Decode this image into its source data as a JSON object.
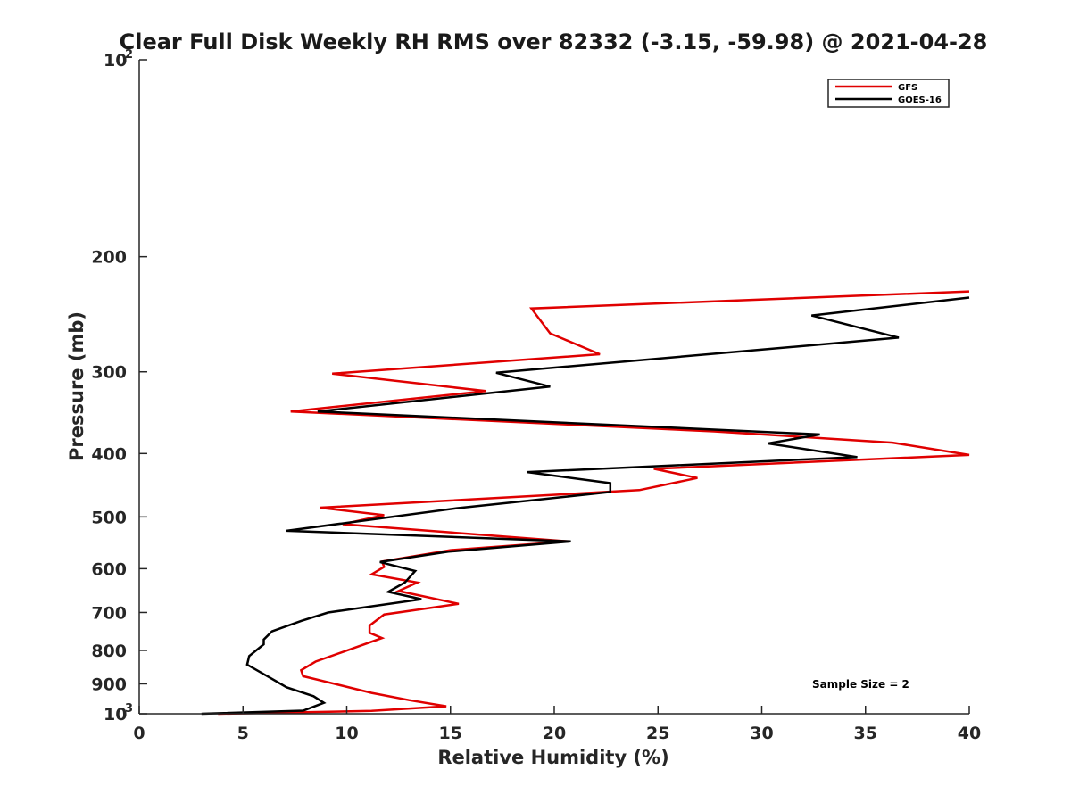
{
  "chart_data": {
    "type": "line",
    "title": "Clear Full Disk Weekly RH RMS over 82332 (-3.15, -59.98) @ 2021-04-28",
    "xlabel": "Relative Humidity (%)",
    "ylabel": "Pressure (mb)",
    "xlim": [
      0,
      40
    ],
    "ylim": [
      100,
      1000
    ],
    "y_scale": "log",
    "y_reversed": true,
    "grid": false,
    "legend_position": "top-right",
    "x_ticks": [
      "0",
      "5",
      "10",
      "15",
      "20",
      "25",
      "30",
      "35",
      "40"
    ],
    "y_ticks": [
      {
        "value": 100,
        "base": "10",
        "exp": "2"
      },
      {
        "value": 200,
        "label": "200"
      },
      {
        "value": 300,
        "label": "300"
      },
      {
        "value": 400,
        "label": "400"
      },
      {
        "value": 500,
        "label": "500"
      },
      {
        "value": 600,
        "label": "600"
      },
      {
        "value": 700,
        "label": "700"
      },
      {
        "value": 800,
        "label": "800"
      },
      {
        "value": 900,
        "label": "900"
      },
      {
        "value": 1000,
        "base": "10",
        "exp": "3"
      }
    ],
    "annotation": "Sample Size = 2",
    "series": [
      {
        "name": "GFS",
        "color": "#e00000",
        "points": [
          [
            40,
            226
          ],
          [
            18.9,
            240
          ],
          [
            19.8,
            262
          ],
          [
            22.2,
            282
          ],
          [
            9.3,
            302
          ],
          [
            16.7,
            321
          ],
          [
            7.3,
            345
          ],
          [
            27.7,
            370
          ],
          [
            36.3,
            385
          ],
          [
            40,
            402
          ],
          [
            24.8,
            422
          ],
          [
            26.9,
            436
          ],
          [
            24.1,
            455
          ],
          [
            8.7,
            484
          ],
          [
            11.8,
            497
          ],
          [
            9.8,
            513
          ],
          [
            20.7,
            545
          ],
          [
            15,
            562
          ],
          [
            11.7,
            585
          ],
          [
            11.8,
            596
          ],
          [
            11.2,
            612
          ],
          [
            13.4,
            630
          ],
          [
            12.5,
            649
          ],
          [
            15.4,
            679
          ],
          [
            11.8,
            705
          ],
          [
            11.1,
            733
          ],
          [
            11.1,
            752
          ],
          [
            11.7,
            766
          ],
          [
            8.5,
            832
          ],
          [
            7.8,
            858
          ],
          [
            7.9,
            876
          ],
          [
            11.2,
            929
          ],
          [
            13,
            953
          ],
          [
            14.8,
            974
          ],
          [
            11.2,
            990
          ],
          [
            3.8,
            1000
          ]
        ]
      },
      {
        "name": "GOES-16",
        "color": "#000000",
        "points": [
          [
            40,
            231
          ],
          [
            32.4,
            246
          ],
          [
            36.6,
            266
          ],
          [
            17.2,
            301
          ],
          [
            19.8,
            316
          ],
          [
            8.6,
            345
          ],
          [
            32.8,
            374
          ],
          [
            30.3,
            386
          ],
          [
            34.6,
            405
          ],
          [
            18.7,
            427
          ],
          [
            22.7,
            444
          ],
          [
            22.7,
            458
          ],
          [
            15.3,
            485
          ],
          [
            7.1,
            525
          ],
          [
            20.8,
            545
          ],
          [
            14.9,
            565
          ],
          [
            11.6,
            586
          ],
          [
            13.3,
            605
          ],
          [
            12.8,
            630
          ],
          [
            12,
            651
          ],
          [
            13.6,
            668
          ],
          [
            9.1,
            700
          ],
          [
            7.8,
            721
          ],
          [
            6.4,
            748
          ],
          [
            6,
            770
          ],
          [
            6,
            783
          ],
          [
            5.3,
            816
          ],
          [
            5.2,
            841
          ],
          [
            6.2,
            877
          ],
          [
            7.1,
            911
          ],
          [
            8.4,
            940
          ],
          [
            8.9,
            962
          ],
          [
            7.9,
            989
          ],
          [
            3,
            1000
          ]
        ]
      }
    ]
  }
}
